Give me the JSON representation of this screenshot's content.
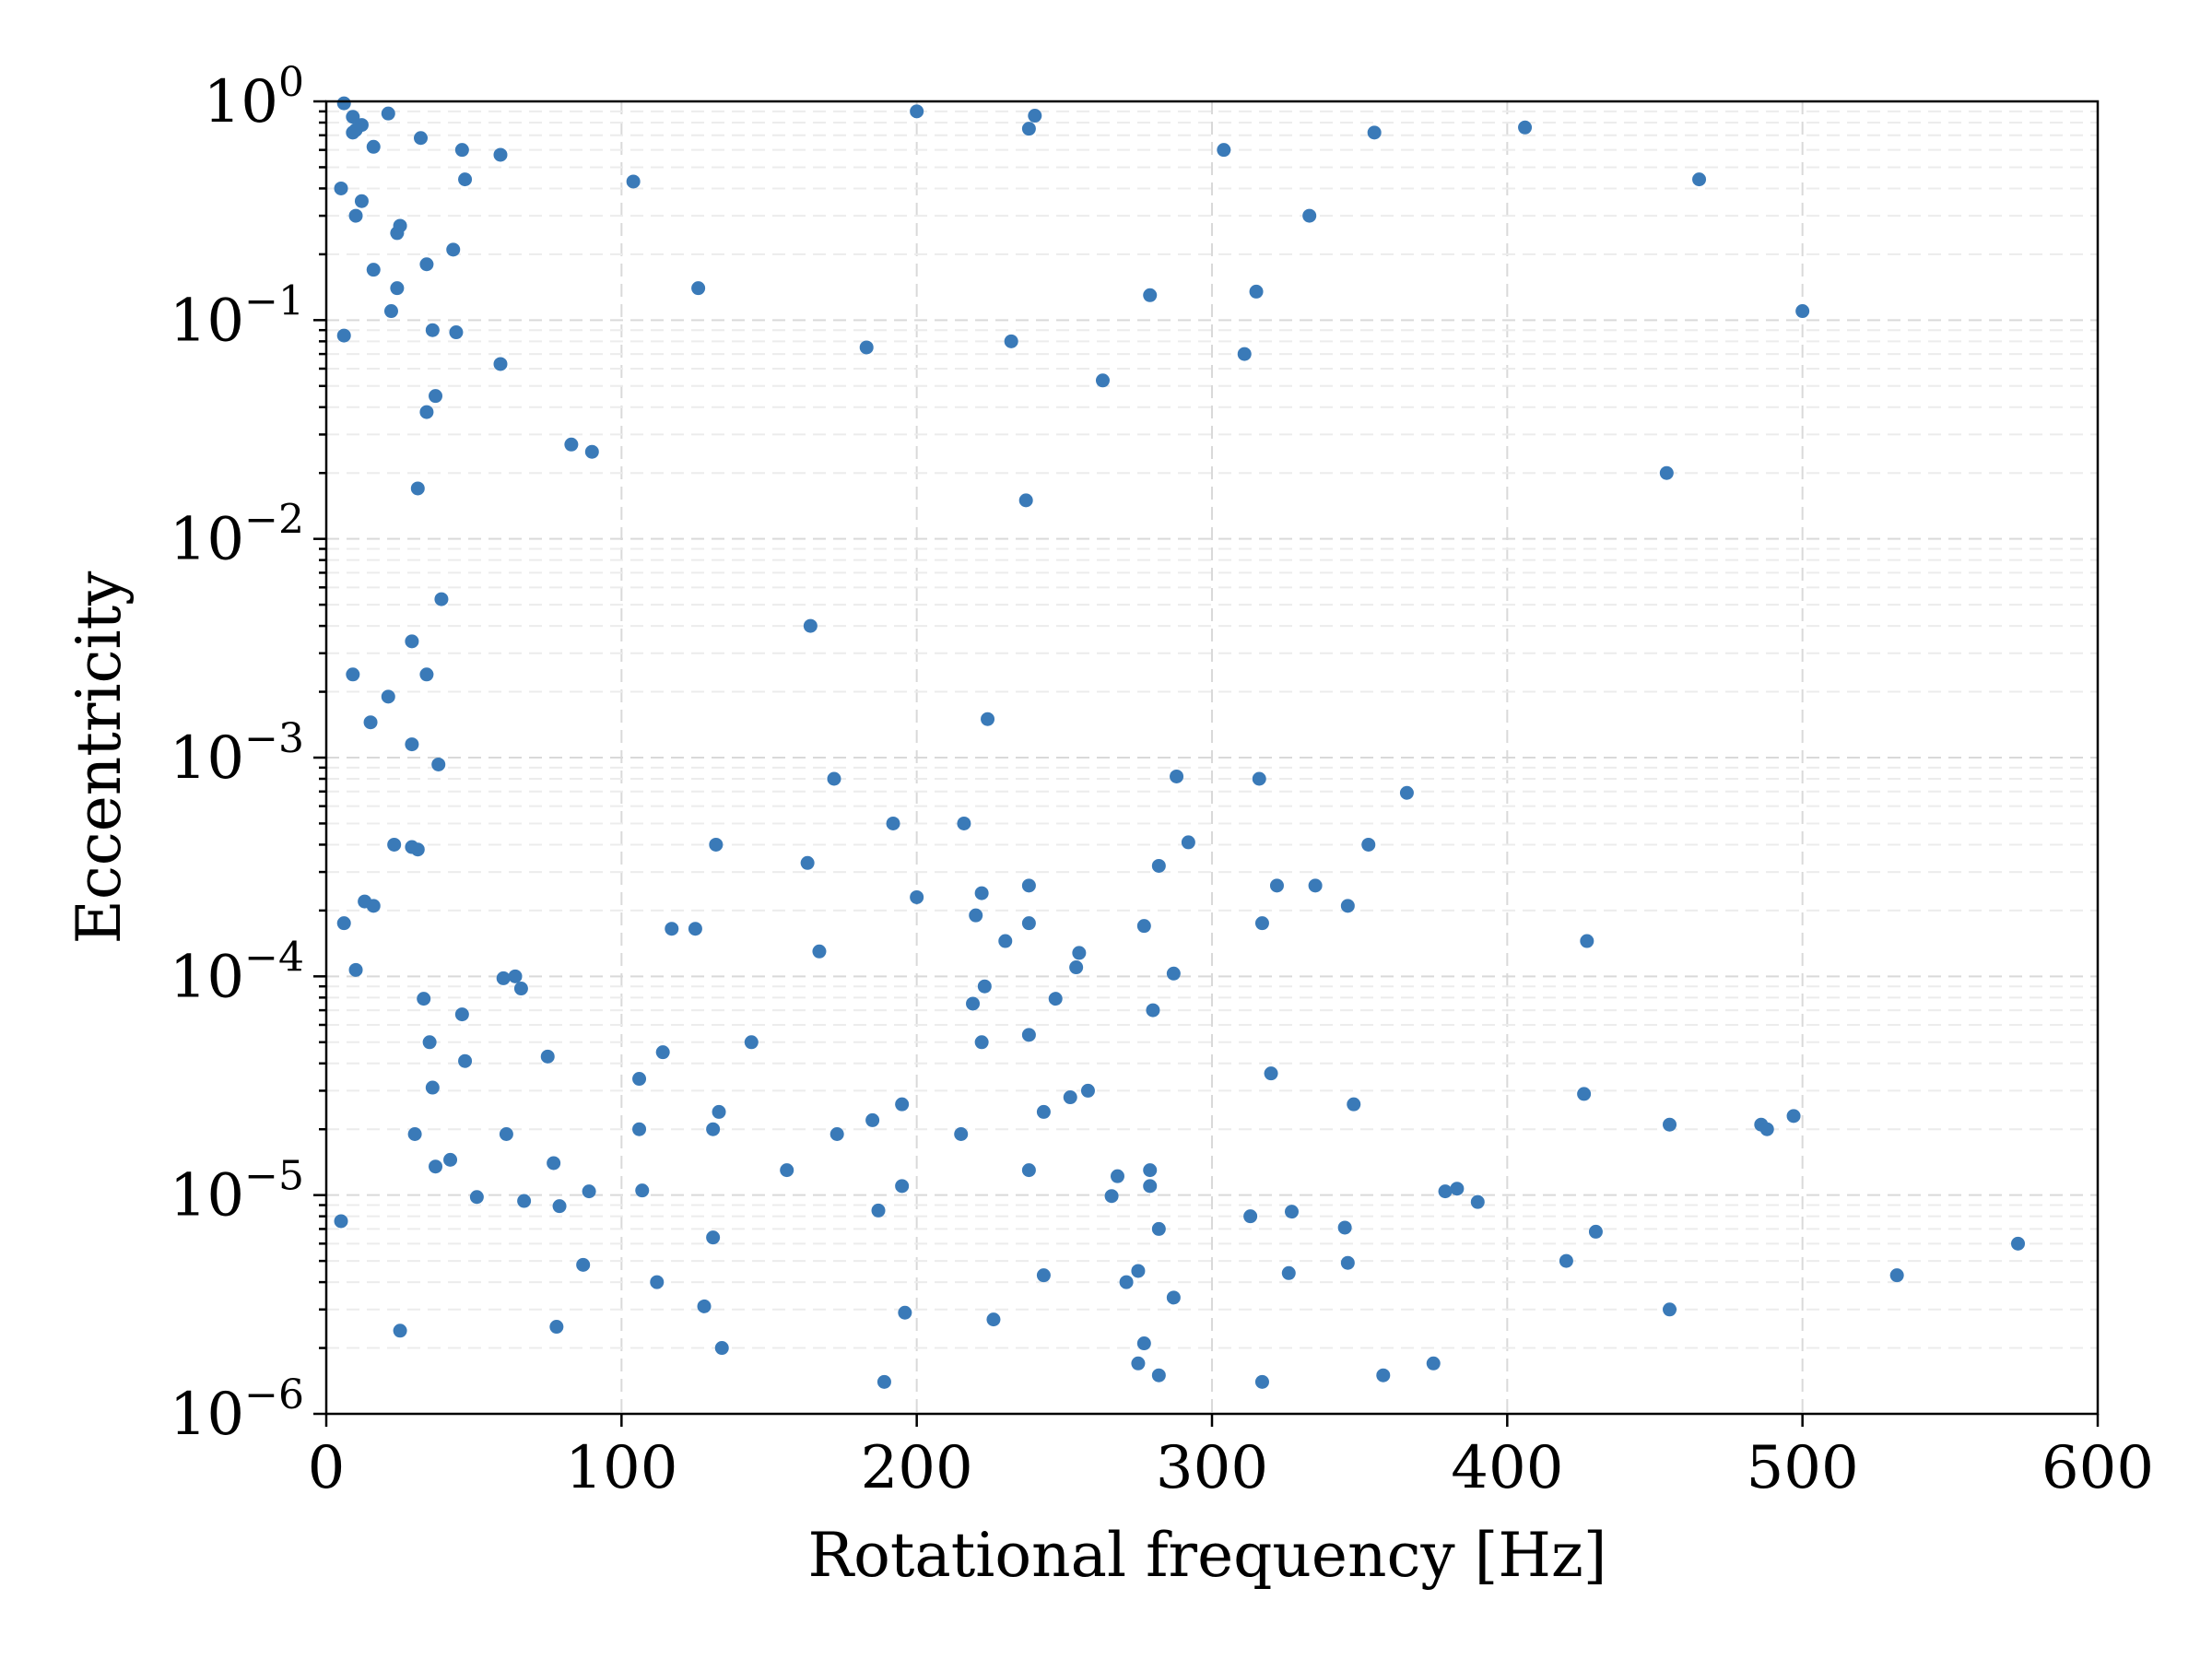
{
  "chart_data": {
    "type": "scatter",
    "xlabel": "Rotational frequency [Hz]",
    "ylabel": "Eccentricity",
    "xlim": [
      0,
      600
    ],
    "ylim": [
      1e-06,
      1
    ],
    "yscale": "log",
    "grid": "on",
    "color": "#3a7ab8",
    "x_ticks": [
      {
        "value": 0,
        "label": "0"
      },
      {
        "value": 100,
        "label": "100"
      },
      {
        "value": 200,
        "label": "200"
      },
      {
        "value": 300,
        "label": "300"
      },
      {
        "value": 400,
        "label": "400"
      },
      {
        "value": 500,
        "label": "500"
      },
      {
        "value": 600,
        "label": "600"
      }
    ],
    "y_ticks": [
      {
        "value": 1,
        "base": "10",
        "exp": "0"
      },
      {
        "value": 0.1,
        "base": "10",
        "exp": "−1"
      },
      {
        "value": 0.01,
        "base": "10",
        "exp": "−2"
      },
      {
        "value": 0.001,
        "base": "10",
        "exp": "−3"
      },
      {
        "value": 0.0001,
        "base": "10",
        "exp": "−4"
      },
      {
        "value": 1e-05,
        "base": "10",
        "exp": "−5"
      },
      {
        "value": 1e-06,
        "base": "10",
        "exp": "−6"
      }
    ],
    "points": [
      [
        6,
        0.98
      ],
      [
        9,
        0.85
      ],
      [
        12,
        0.78
      ],
      [
        9,
        0.72
      ],
      [
        10,
        0.74
      ],
      [
        21,
        0.88
      ],
      [
        16,
        0.62
      ],
      [
        32,
        0.68
      ],
      [
        46,
        0.6
      ],
      [
        59,
        0.57
      ],
      [
        47,
        0.44
      ],
      [
        104,
        0.43
      ],
      [
        200,
        0.9
      ],
      [
        240,
        0.86
      ],
      [
        238,
        0.75
      ],
      [
        304,
        0.6
      ],
      [
        355,
        0.72
      ],
      [
        406,
        0.76
      ],
      [
        465,
        0.44
      ],
      [
        5,
        0.4
      ],
      [
        12,
        0.35
      ],
      [
        10,
        0.3
      ],
      [
        25,
        0.27
      ],
      [
        24,
        0.25
      ],
      [
        43,
        0.21
      ],
      [
        16,
        0.17
      ],
      [
        34,
        0.18
      ],
      [
        24,
        0.14
      ],
      [
        22,
        0.11
      ],
      [
        126,
        0.14
      ],
      [
        279,
        0.13
      ],
      [
        315,
        0.135
      ],
      [
        333,
        0.3
      ],
      [
        500,
        0.11
      ],
      [
        6,
        0.085
      ],
      [
        36,
        0.09
      ],
      [
        44,
        0.088
      ],
      [
        59,
        0.063
      ],
      [
        183,
        0.075
      ],
      [
        232,
        0.08
      ],
      [
        263,
        0.053
      ],
      [
        311,
        0.07
      ],
      [
        37,
        0.045
      ],
      [
        34,
        0.038
      ],
      [
        83,
        0.027
      ],
      [
        90,
        0.025
      ],
      [
        31,
        0.017
      ],
      [
        454,
        0.02
      ],
      [
        237,
        0.015
      ],
      [
        39,
        0.0053
      ],
      [
        164,
        0.004
      ],
      [
        29,
        0.0034
      ],
      [
        9,
        0.0024
      ],
      [
        34,
        0.0024
      ],
      [
        21,
        0.0019
      ],
      [
        224,
        0.0015
      ],
      [
        15,
        0.00145
      ],
      [
        29,
        0.00115
      ],
      [
        38,
        0.00093
      ],
      [
        172,
        0.0008
      ],
      [
        288,
        0.00082
      ],
      [
        316,
        0.0008
      ],
      [
        366,
        0.00069
      ],
      [
        192,
        0.0005
      ],
      [
        216,
        0.0005
      ],
      [
        23,
        0.0004
      ],
      [
        29,
        0.00039
      ],
      [
        31,
        0.00038
      ],
      [
        132,
        0.0004
      ],
      [
        292,
        0.00041
      ],
      [
        353,
        0.0004
      ],
      [
        163,
        0.00033
      ],
      [
        282,
        0.00032
      ],
      [
        238,
        0.00026
      ],
      [
        222,
        0.00024
      ],
      [
        322,
        0.00026
      ],
      [
        335,
        0.00026
      ],
      [
        200,
        0.00023
      ],
      [
        13,
        0.00022
      ],
      [
        16,
        0.00021
      ],
      [
        346,
        0.00021
      ],
      [
        220,
        0.00019
      ],
      [
        6,
        0.000175
      ],
      [
        117,
        0.000165
      ],
      [
        125,
        0.000165
      ],
      [
        238,
        0.000175
      ],
      [
        277,
        0.00017
      ],
      [
        317,
        0.000175
      ],
      [
        230,
        0.000145
      ],
      [
        427,
        0.000145
      ],
      [
        167,
        0.00013
      ],
      [
        255,
        0.000128
      ],
      [
        254,
        0.00011
      ],
      [
        10,
        0.000107
      ],
      [
        287,
        0.000103
      ],
      [
        60,
        9.8e-05
      ],
      [
        64,
        0.0001
      ],
      [
        66,
        8.8e-05
      ],
      [
        223,
        9e-05
      ],
      [
        33,
        7.9e-05
      ],
      [
        219,
        7.5e-05
      ],
      [
        247,
        7.9e-05
      ],
      [
        280,
        7e-05
      ],
      [
        46,
        6.7e-05
      ],
      [
        238,
        5.4e-05
      ],
      [
        35,
        5e-05
      ],
      [
        222,
        5e-05
      ],
      [
        144,
        5e-05
      ],
      [
        47,
        4.1e-05
      ],
      [
        75,
        4.3e-05
      ],
      [
        114,
        4.5e-05
      ],
      [
        106,
        3.4e-05
      ],
      [
        320,
        3.6e-05
      ],
      [
        36,
        3.1e-05
      ],
      [
        258,
        3e-05
      ],
      [
        426,
        2.9e-05
      ],
      [
        195,
        2.6e-05
      ],
      [
        348,
        2.6e-05
      ],
      [
        133,
        2.4e-05
      ],
      [
        243,
        2.4e-05
      ],
      [
        252,
        2.8e-05
      ],
      [
        497,
        2.3e-05
      ],
      [
        185,
        2.2e-05
      ],
      [
        455,
        2.1e-05
      ],
      [
        486,
        2.1e-05
      ],
      [
        488,
        2e-05
      ],
      [
        30,
        1.9e-05
      ],
      [
        61,
        1.9e-05
      ],
      [
        106,
        2e-05
      ],
      [
        131,
        2e-05
      ],
      [
        173,
        1.9e-05
      ],
      [
        215,
        1.9e-05
      ],
      [
        42,
        1.45e-05
      ],
      [
        37,
        1.35e-05
      ],
      [
        77,
        1.4e-05
      ],
      [
        156,
        1.3e-05
      ],
      [
        238,
        1.3e-05
      ],
      [
        268,
        1.22e-05
      ],
      [
        279,
        1.3e-05
      ],
      [
        195,
        1.1e-05
      ],
      [
        107,
        1.05e-05
      ],
      [
        89,
        1.04e-05
      ],
      [
        279,
        1.1e-05
      ],
      [
        51,
        9.8e-06
      ],
      [
        67,
        9.4e-06
      ],
      [
        79,
        8.9e-06
      ],
      [
        266,
        9.9e-06
      ],
      [
        379,
        1.04e-05
      ],
      [
        383,
        1.07e-05
      ],
      [
        390,
        9.3e-06
      ],
      [
        187,
        8.5e-06
      ],
      [
        313,
        8e-06
      ],
      [
        327,
        8.4e-06
      ],
      [
        5,
        7.6e-06
      ],
      [
        282,
        7e-06
      ],
      [
        345,
        7.1e-06
      ],
      [
        430,
        6.8e-06
      ],
      [
        131,
        6.4e-06
      ],
      [
        573,
        6e-06
      ],
      [
        87,
        4.8e-06
      ],
      [
        346,
        4.9e-06
      ],
      [
        420,
        5e-06
      ],
      [
        243,
        4.3e-06
      ],
      [
        275,
        4.5e-06
      ],
      [
        326,
        4.4e-06
      ],
      [
        532,
        4.3e-06
      ],
      [
        112,
        4e-06
      ],
      [
        271,
        4e-06
      ],
      [
        128,
        3.1e-06
      ],
      [
        287,
        3.4e-06
      ],
      [
        455,
        3e-06
      ],
      [
        196,
        2.9e-06
      ],
      [
        226,
        2.7e-06
      ],
      [
        25,
        2.4e-06
      ],
      [
        78,
        2.5e-06
      ],
      [
        134,
        2e-06
      ],
      [
        277,
        2.1e-06
      ],
      [
        275,
        1.7e-06
      ],
      [
        375,
        1.7e-06
      ],
      [
        282,
        1.5e-06
      ],
      [
        358,
        1.5e-06
      ],
      [
        189,
        1.4e-06
      ],
      [
        317,
        1.4e-06
      ]
    ]
  }
}
